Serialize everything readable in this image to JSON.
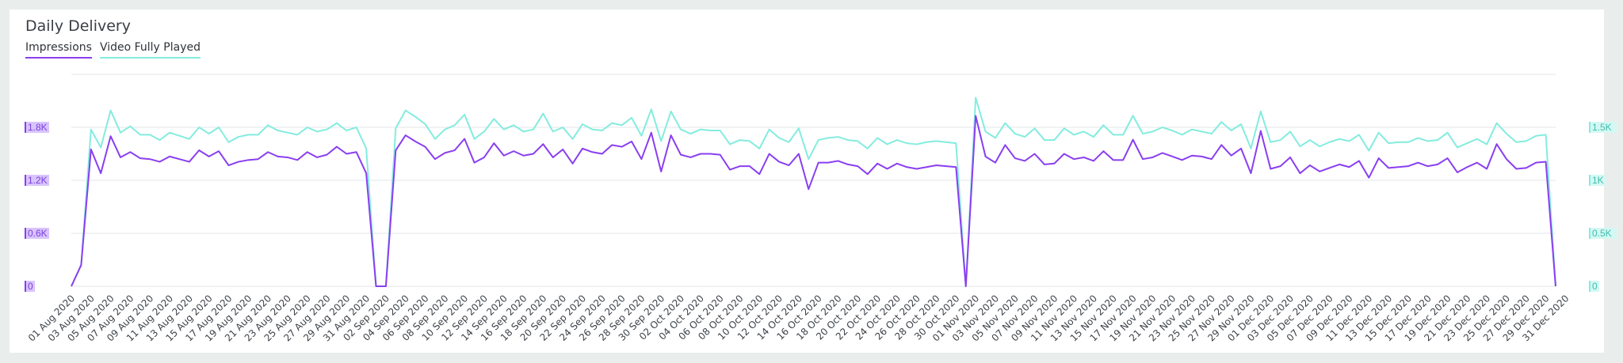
{
  "chart_data": {
    "type": "line",
    "title": "Daily Delivery",
    "series": [
      {
        "name": "Impressions",
        "color": "#8a3ef0",
        "axis": "left",
        "values": [
          0,
          240,
          1550,
          1280,
          1700,
          1460,
          1520,
          1450,
          1440,
          1410,
          1470,
          1440,
          1410,
          1540,
          1470,
          1530,
          1370,
          1410,
          1430,
          1440,
          1520,
          1470,
          1460,
          1430,
          1520,
          1460,
          1490,
          1580,
          1500,
          1520,
          1280,
          0,
          0,
          1540,
          1710,
          1640,
          1580,
          1440,
          1510,
          1540,
          1670,
          1400,
          1460,
          1620,
          1480,
          1530,
          1480,
          1500,
          1610,
          1460,
          1550,
          1390,
          1560,
          1520,
          1500,
          1600,
          1580,
          1640,
          1440,
          1740,
          1300,
          1710,
          1490,
          1460,
          1500,
          1500,
          1490,
          1320,
          1360,
          1360,
          1270,
          1500,
          1410,
          1370,
          1500,
          1100,
          1400,
          1400,
          1420,
          1380,
          1360,
          1270,
          1390,
          1330,
          1390,
          1350,
          1330,
          1350,
          1370,
          1360,
          1350,
          0,
          1930,
          1470,
          1400,
          1600,
          1450,
          1420,
          1500,
          1380,
          1390,
          1500,
          1440,
          1460,
          1420,
          1530,
          1430,
          1430,
          1660,
          1440,
          1460,
          1510,
          1470,
          1430,
          1480,
          1470,
          1440,
          1600,
          1480,
          1560,
          1280,
          1760,
          1330,
          1360,
          1460,
          1280,
          1370,
          1300,
          1340,
          1380,
          1350,
          1420,
          1230,
          1450,
          1340,
          1350,
          1360,
          1400,
          1360,
          1380,
          1450,
          1290,
          1350,
          1400,
          1330,
          1610,
          1440,
          1330,
          1340,
          1400,
          1410,
          0
        ]
      },
      {
        "name": "Video Fully Played",
        "color": "#84ecdf",
        "axis": "right",
        "values": [
          0,
          200,
          1480,
          1310,
          1660,
          1450,
          1510,
          1430,
          1430,
          1380,
          1450,
          1420,
          1390,
          1500,
          1440,
          1500,
          1360,
          1410,
          1430,
          1430,
          1520,
          1470,
          1450,
          1430,
          1500,
          1460,
          1480,
          1540,
          1470,
          1500,
          1300,
          0,
          0,
          1490,
          1660,
          1600,
          1530,
          1390,
          1480,
          1520,
          1620,
          1390,
          1460,
          1580,
          1480,
          1520,
          1460,
          1480,
          1630,
          1460,
          1500,
          1390,
          1530,
          1480,
          1470,
          1540,
          1520,
          1590,
          1420,
          1670,
          1370,
          1650,
          1480,
          1440,
          1480,
          1470,
          1470,
          1340,
          1380,
          1370,
          1300,
          1480,
          1400,
          1360,
          1490,
          1200,
          1380,
          1400,
          1410,
          1380,
          1370,
          1300,
          1400,
          1340,
          1380,
          1350,
          1340,
          1360,
          1370,
          1360,
          1350,
          0,
          1780,
          1460,
          1400,
          1540,
          1440,
          1410,
          1490,
          1380,
          1380,
          1490,
          1430,
          1460,
          1410,
          1520,
          1430,
          1430,
          1610,
          1440,
          1460,
          1500,
          1470,
          1430,
          1480,
          1460,
          1440,
          1550,
          1470,
          1530,
          1300,
          1650,
          1360,
          1380,
          1460,
          1320,
          1380,
          1320,
          1360,
          1390,
          1370,
          1430,
          1280,
          1450,
          1350,
          1360,
          1360,
          1400,
          1370,
          1380,
          1450,
          1310,
          1350,
          1390,
          1340,
          1540,
          1440,
          1360,
          1370,
          1420,
          1430,
          0
        ]
      }
    ],
    "x_labels": [
      "01 Aug 2020",
      "03 Aug 2020",
      "05 Aug 2020",
      "07 Aug 2020",
      "09 Aug 2020",
      "11 Aug 2020",
      "13 Aug 2020",
      "15 Aug 2020",
      "17 Aug 2020",
      "19 Aug 2020",
      "21 Aug 2020",
      "23 Aug 2020",
      "25 Aug 2020",
      "27 Aug 2020",
      "29 Aug 2020",
      "31 Aug 2020",
      "02 Sep 2020",
      "04 Sep 2020",
      "06 Sep 2020",
      "08 Sep 2020",
      "10 Sep 2020",
      "12 Sep 2020",
      "14 Sep 2020",
      "16 Sep 2020",
      "18 Sep 2020",
      "20 Sep 2020",
      "22 Sep 2020",
      "24 Sep 2020",
      "26 Sep 2020",
      "28 Sep 2020",
      "30 Sep 2020",
      "02 Oct 2020",
      "04 Oct 2020",
      "06 Oct 2020",
      "08 Oct 2020",
      "10 Oct 2020",
      "12 Oct 2020",
      "14 Oct 2020",
      "16 Oct 2020",
      "18 Oct 2020",
      "20 Oct 2020",
      "22 Oct 2020",
      "24 Oct 2020",
      "26 Oct 2020",
      "28 Oct 2020",
      "30 Oct 2020",
      "01 Nov 2020",
      "03 Nov 2020",
      "05 Nov 2020",
      "07 Nov 2020",
      "09 Nov 2020",
      "11 Nov 2020",
      "13 Nov 2020",
      "15 Nov 2020",
      "17 Nov 2020",
      "19 Nov 2020",
      "21 Nov 2020",
      "23 Nov 2020",
      "25 Nov 2020",
      "27 Nov 2020",
      "29 Nov 2020",
      "01 Dec 2020",
      "03 Dec 2020",
      "05 Dec 2020",
      "07 Dec 2020",
      "09 Dec 2020",
      "11 Dec 2020",
      "13 Dec 2020",
      "15 Dec 2020",
      "17 Dec 2020",
      "19 Dec 2020",
      "21 Dec 2020",
      "23 Dec 2020",
      "25 Dec 2020",
      "27 Dec 2020",
      "29 Dec 2020",
      "31 Dec 2020"
    ],
    "y_left": {
      "min": 0,
      "max": 2400,
      "ticks": [
        0,
        600,
        1200,
        1800
      ],
      "tick_labels": [
        "0",
        "0.6K",
        "1.2K",
        "1.8K"
      ]
    },
    "y_right": {
      "min": 0,
      "max": 2000,
      "ticks": [
        0,
        500,
        1000,
        1500
      ],
      "tick_labels": [
        "0",
        "0.5K",
        "1K",
        "1.5K"
      ]
    },
    "grid": true,
    "legend_position": "top-left"
  }
}
